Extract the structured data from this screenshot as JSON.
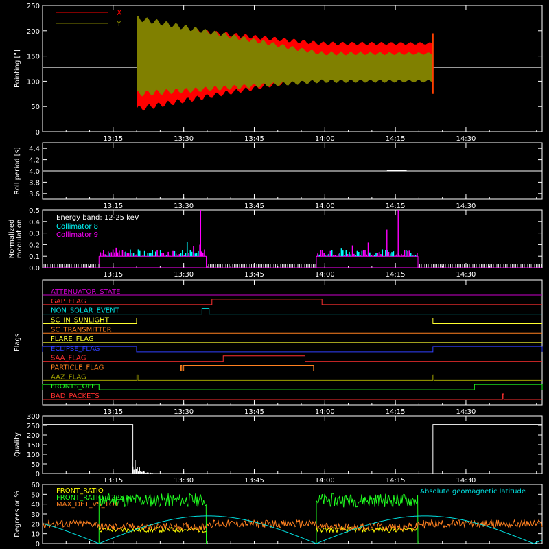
{
  "chart_data": [
    {
      "type": "line",
      "id": "pointing",
      "ylabel": "Pointing [\"]",
      "xlim": [
        13.0,
        14.77
      ],
      "ylim": [
        0,
        250
      ],
      "yticks": [
        0,
        50,
        100,
        150,
        200,
        250
      ],
      "xtick_labels": [
        "13:15",
        "13:30",
        "13:45",
        "14:00",
        "14:15",
        "14:30"
      ],
      "xtick_values": [
        13.25,
        13.5,
        13.75,
        14.0,
        14.25,
        14.5
      ],
      "baseline": 127,
      "active_range": [
        13.333,
        14.383
      ],
      "series": [
        {
          "name": "X",
          "color": "#ff0000",
          "envelope_start": [
            45,
            210
          ],
          "envelope_end": [
            110,
            175
          ]
        },
        {
          "name": "Y",
          "color": "#808000",
          "envelope_start": [
            75,
            225
          ],
          "envelope_end": [
            100,
            155
          ]
        }
      ]
    },
    {
      "type": "line",
      "id": "roll",
      "ylabel": "Roll period [s]",
      "xlim": [
        13.0,
        14.77
      ],
      "ylim": [
        3.5,
        4.5
      ],
      "yticks": [
        3.6,
        3.8,
        4.0,
        4.2,
        4.4
      ],
      "ytick_labels": [
        "3.6",
        "3.8",
        "4.0",
        "4.2",
        "4.4"
      ],
      "xtick_labels": [
        "13:15",
        "13:30",
        "13:45",
        "14:00",
        "14:15",
        "14:30"
      ],
      "xtick_values": [
        13.25,
        13.5,
        13.75,
        14.0,
        14.25,
        14.5
      ],
      "value": 4.0,
      "series": [
        {
          "color": "#ffffff"
        }
      ]
    },
    {
      "type": "bar",
      "id": "modulation",
      "ylabel": "Normalized modulation",
      "ylabel_lines": [
        "Normalized",
        "modulation"
      ],
      "xlim": [
        13.0,
        14.77
      ],
      "ylim": [
        0,
        0.5
      ],
      "yticks": [
        0.0,
        0.1,
        0.2,
        0.3,
        0.4,
        0.5
      ],
      "ytick_labels": [
        "0.0",
        "0.1",
        "0.2",
        "0.3",
        "0.4",
        "0.5"
      ],
      "xtick_labels": [
        "13:15",
        "13:30",
        "13:45",
        "14:00",
        "14:15",
        "14:30"
      ],
      "xtick_values": [
        13.25,
        13.5,
        13.75,
        14.0,
        14.25,
        14.5
      ],
      "legend_title": "Energy band: 12-25 keV",
      "active_ranges": [
        [
          13.2,
          13.58
        ],
        [
          13.97,
          14.33
        ]
      ],
      "series": [
        {
          "name": "Collimator 8",
          "color": "#00ffff"
        },
        {
          "name": "Collimator 9",
          "color": "#ff00ff"
        }
      ]
    },
    {
      "type": "line",
      "id": "flags",
      "ylabel": "Flags",
      "xlim": [
        13.0,
        14.77
      ],
      "xtick_labels": [
        "13:15",
        "13:30",
        "13:45",
        "14:00",
        "14:15",
        "14:30"
      ],
      "xtick_values": [
        13.25,
        13.5,
        13.75,
        14.0,
        14.25,
        14.5
      ],
      "series": [
        {
          "name": "ATTENUATOR_STATE",
          "color": "#cc00cc",
          "high": []
        },
        {
          "name": "GAP_FLAG",
          "color": "#ff3030",
          "high": [
            [
              13.6,
              13.99
            ]
          ]
        },
        {
          "name": "NON_SOLAR_EVENT",
          "color": "#00e0e0",
          "high": [
            [
              13.565,
              13.59
            ]
          ]
        },
        {
          "name": "SC_IN_SUNLIGHT",
          "color": "#ffff30",
          "high": [
            [
              13.333,
              14.383
            ]
          ]
        },
        {
          "name": "SC_TRANSMITTER",
          "color": "#ff8020",
          "high": []
        },
        {
          "name": "FLARE_FLAG",
          "color": "#ffff30",
          "high": []
        },
        {
          "name": "ECLIPSE_FLAG",
          "color": "#3040ff",
          "high": [
            [
              13.0,
              13.333
            ],
            [
              14.383,
              14.77
            ]
          ]
        },
        {
          "name": "SAA_FLAG",
          "color": "#ff3030",
          "high": [
            [
              13.64,
              13.93
            ]
          ]
        },
        {
          "name": "PARTICLE_FLAG",
          "color": "#ff8020",
          "high": [
            [
              13.49,
              13.493
            ],
            [
              13.497,
              13.5
            ],
            [
              13.5,
              13.96
            ]
          ]
        },
        {
          "name": "AAZ_FLAG",
          "color": "#a0a000",
          "high": [
            [
              13.334,
              13.338
            ],
            [
              14.383,
              14.387
            ]
          ]
        },
        {
          "name": "FRONTS_OFF",
          "color": "#20ff20",
          "high": [
            [
              13.0,
              13.2
            ],
            [
              14.53,
              14.77
            ]
          ]
        },
        {
          "name": "BAD_PACKETS",
          "color": "#ff3030",
          "high": [
            [
              14.63,
              14.634
            ]
          ]
        }
      ]
    },
    {
      "type": "line",
      "id": "quality",
      "ylabel": "Quality",
      "xlim": [
        13.0,
        14.77
      ],
      "ylim": [
        0,
        300
      ],
      "yticks": [
        0,
        50,
        100,
        150,
        200,
        250,
        300
      ],
      "xtick_labels": [
        "13:15",
        "13:30",
        "13:45",
        "14:00",
        "14:15",
        "14:30"
      ],
      "xtick_values": [
        13.25,
        13.5,
        13.75,
        14.0,
        14.25,
        14.5
      ],
      "series": [
        {
          "color": "#ffffff",
          "high": [
            [
              13.0,
              13.32
            ],
            [
              14.383,
              14.77
            ]
          ],
          "high_value": 255
        }
      ]
    },
    {
      "type": "line",
      "id": "ratios",
      "ylabel": "Degrees or %",
      "xlim": [
        13.0,
        14.77
      ],
      "ylim": [
        0,
        60
      ],
      "yticks": [
        0,
        10,
        20,
        30,
        40,
        50,
        60
      ],
      "series": [
        {
          "name": "FRONT_RATIO",
          "color": "#ffff00",
          "level": 15
        },
        {
          "name": "FRONT_RATIO_1225",
          "color": "#20ff20",
          "level": 45
        },
        {
          "name": "MAX_DET_VS_TOT",
          "color": "#ff8020",
          "level": 20
        },
        {
          "name": "Absolute geomagnetic latitude",
          "color": "#00e0e0"
        }
      ],
      "active_ranges": [
        [
          13.2,
          13.58
        ],
        [
          13.97,
          14.33
        ]
      ],
      "latitude_peaks": [
        [
          13.2,
          0
        ],
        [
          13.62,
          28
        ],
        [
          13.97,
          0
        ],
        [
          14.4,
          28
        ],
        [
          14.77,
          22
        ]
      ]
    }
  ]
}
